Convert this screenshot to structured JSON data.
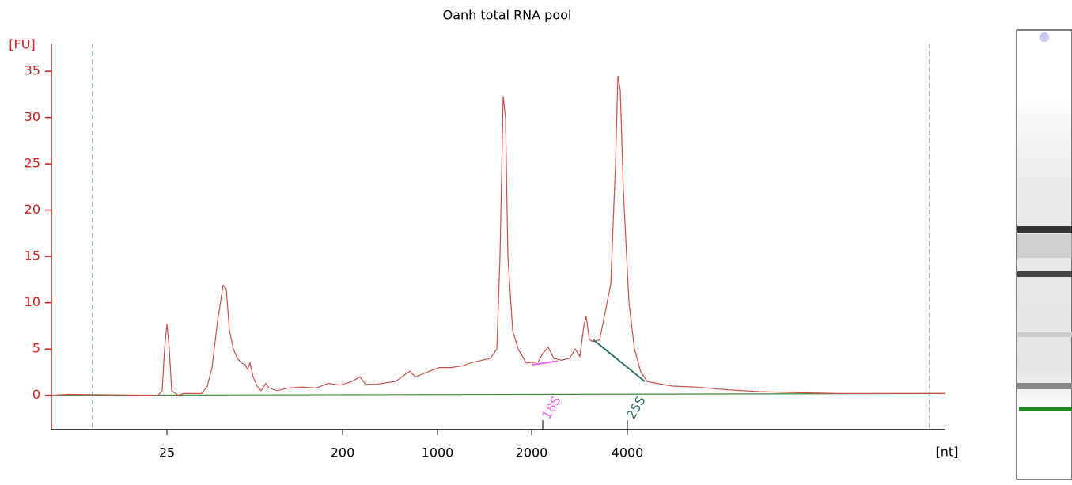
{
  "chart_data": {
    "type": "line",
    "title": "Oanh total RNA pool",
    "y_label": "[FU]",
    "x_label": "[nt]",
    "xlim": [
      0,
      113
    ],
    "ylim": [
      -3.7,
      38
    ],
    "yticks": [
      0,
      5,
      10,
      15,
      20,
      25,
      30,
      35
    ],
    "xticks": [
      {
        "value": 14.6,
        "label": "25"
      },
      {
        "value": 36.8,
        "label": "200"
      },
      {
        "value": 48.8,
        "label": "1000"
      },
      {
        "value": 60.7,
        "label": "2000"
      },
      {
        "value": 72.8,
        "label": "4000"
      }
    ],
    "color": "#c8504a",
    "x": [
      0,
      2,
      13.5,
      14,
      14.3,
      14.6,
      14.9,
      15.2,
      16,
      16.7,
      19,
      19.7,
      20.3,
      21,
      21.7,
      22.1,
      22.5,
      23,
      23.5,
      24,
      24.5,
      24.8,
      25.1,
      25.5,
      26,
      26.5,
      27.1,
      27.5,
      28.5,
      30,
      31.5,
      33.5,
      35,
      36.5,
      38,
      39,
      39.7,
      41,
      43.5,
      45.3,
      46,
      47.5,
      49,
      50.5,
      52,
      53,
      54.5,
      55.5,
      56.3,
      56.7,
      57.1,
      57.4,
      57.7,
      58.3,
      59,
      60,
      61.5,
      62.1,
      62.8,
      63.5,
      64.5,
      65.5,
      66.2,
      66.8,
      67.3,
      67.6,
      68,
      68.5,
      69.3,
      70,
      70.7,
      71.3,
      71.6,
      71.9,
      72.3,
      73,
      73.7,
      74.5,
      75.3,
      76.5,
      78.5,
      81.5,
      85.5,
      89.5,
      93.5,
      99.5,
      103.5,
      108.5,
      113
    ],
    "values": [
      0,
      0.1,
      0,
      0.5,
      5,
      7.7,
      5,
      0.5,
      0,
      0.2,
      0.2,
      1,
      3,
      8,
      11.9,
      11.5,
      7,
      5,
      4,
      3.5,
      3.3,
      2.8,
      3.5,
      2,
      1,
      0.5,
      1.3,
      0.8,
      0.5,
      0.8,
      0.9,
      0.8,
      1.3,
      1.1,
      1.5,
      2,
      1.2,
      1.2,
      1.5,
      2.6,
      2,
      2.5,
      3,
      3,
      3.2,
      3.5,
      3.8,
      4,
      5,
      15,
      32.3,
      30,
      15,
      7,
      5,
      3.5,
      3.6,
      4.5,
      5.2,
      4,
      3.8,
      4,
      5,
      4.2,
      7.5,
      8.5,
      6,
      5.8,
      6,
      9,
      12,
      25,
      34.5,
      33,
      22,
      10,
      5,
      2.5,
      1.5,
      1.3,
      1,
      0.9,
      0.6,
      0.4,
      0.3,
      0.2,
      0.2,
      0.2,
      0.2
    ],
    "baseline": {
      "x": [
        0,
        113
      ],
      "values": [
        0,
        0.2
      ],
      "color": "#3a8a3a"
    },
    "markers_x": [
      5.2,
      111
    ],
    "annotations": [
      {
        "label": "18S",
        "x": 62.1,
        "color": "#e066e0",
        "baseline_x": [
          60.7,
          64
        ],
        "baseline_y": [
          3.3,
          3.7
        ]
      },
      {
        "label": "25S",
        "x": 72.8,
        "color": "#2f7070",
        "baseline_x": [
          68.5,
          75
        ],
        "baseline_y": [
          6,
          1.5
        ]
      }
    ]
  }
}
